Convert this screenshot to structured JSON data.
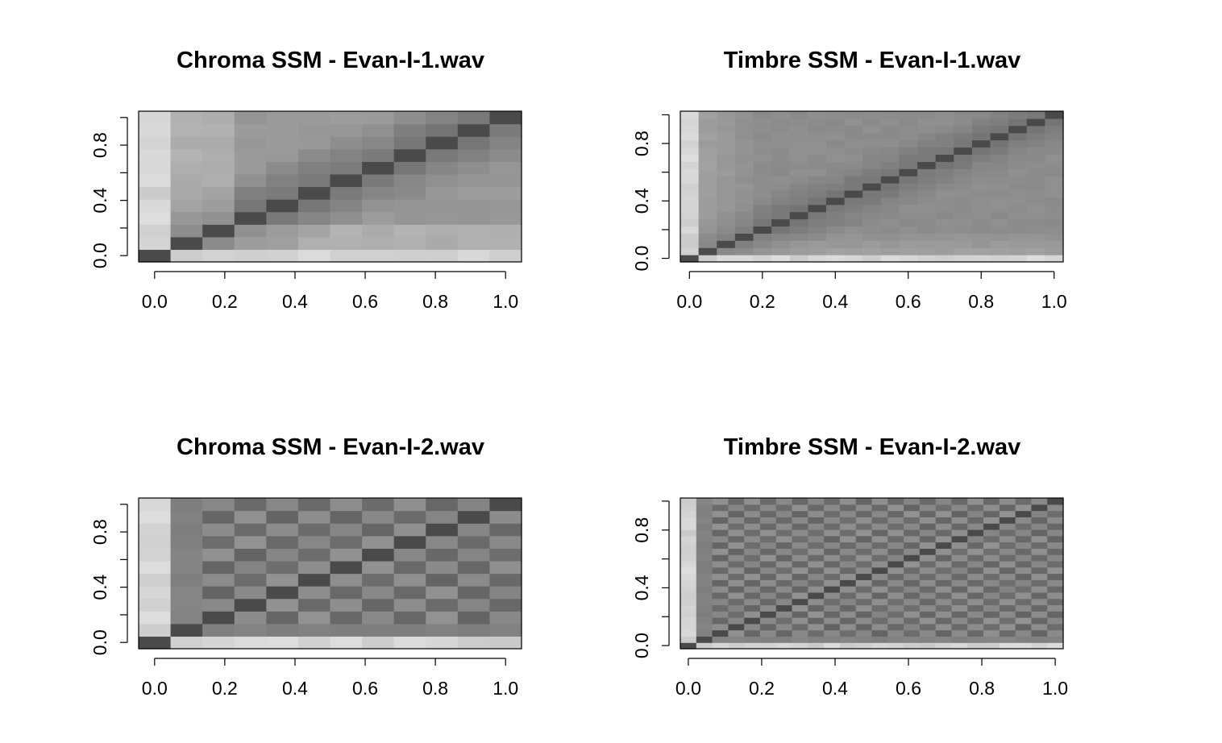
{
  "chart_data": [
    {
      "type": "heatmap",
      "title": "Chroma SSM - Evan-I-1.wav",
      "colorscale": "grayscale",
      "grid": false,
      "xlim": [
        0.0,
        1.0
      ],
      "ylim": [
        0.0,
        1.0
      ],
      "x_ticks": [
        "0.0",
        "0.2",
        "0.4",
        "0.6",
        "0.8",
        "1.0"
      ],
      "y_ticks": [
        "0.0",
        "0.4",
        "0.8"
      ],
      "matrix_size": 12,
      "pattern": "block",
      "seed": 1
    },
    {
      "type": "heatmap",
      "title": "Timbre SSM - Evan-I-1.wav",
      "colorscale": "grayscale",
      "grid": false,
      "xlim": [
        0.0,
        1.0
      ],
      "ylim": [
        0.0,
        1.0
      ],
      "x_ticks": [
        "0.0",
        "0.2",
        "0.4",
        "0.6",
        "0.8",
        "1.0"
      ],
      "y_ticks": [
        "0.0",
        "0.4",
        "0.8"
      ],
      "matrix_size": 21,
      "pattern": "smooth",
      "seed": 2
    },
    {
      "type": "heatmap",
      "title": "Chroma SSM - Evan-I-2.wav",
      "colorscale": "grayscale",
      "grid": false,
      "xlim": [
        0.0,
        1.0
      ],
      "ylim": [
        0.0,
        1.0
      ],
      "x_ticks": [
        "0.0",
        "0.2",
        "0.4",
        "0.6",
        "0.8",
        "1.0"
      ],
      "y_ticks": [
        "0.0",
        "0.4",
        "0.8"
      ],
      "matrix_size": 12,
      "pattern": "checker",
      "seed": 3
    },
    {
      "type": "heatmap",
      "title": "Timbre SSM - Evan-I-2.wav",
      "colorscale": "grayscale",
      "grid": false,
      "xlim": [
        0.0,
        1.0
      ],
      "ylim": [
        0.0,
        1.0
      ],
      "x_ticks": [
        "0.0",
        "0.2",
        "0.4",
        "0.6",
        "0.8",
        "1.0"
      ],
      "y_ticks": [
        "0.0",
        "0.4",
        "0.8"
      ],
      "matrix_size": 24,
      "pattern": "checker",
      "seed": 4
    }
  ]
}
